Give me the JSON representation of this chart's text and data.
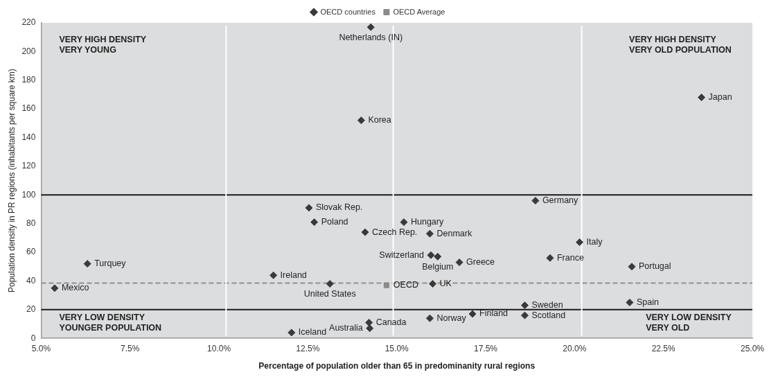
{
  "chart_data": {
    "type": "scatter",
    "xlabel": "Percentage of population older than 65 in predominanity rural regions",
    "ylabel": "Population density in PR regions (inhabitants per square km)",
    "legend": "top",
    "grid": false,
    "xlim": [
      5,
      25
    ],
    "xticks": [
      {
        "value": 5,
        "label": "5.0%"
      },
      {
        "value": 7.5,
        "label": "7.5%"
      },
      {
        "value": 10,
        "label": "10.0%"
      },
      {
        "value": 12.5,
        "label": "12.5%"
      },
      {
        "value": 15,
        "label": "15.0%"
      },
      {
        "value": 17.5,
        "label": "17.5%"
      },
      {
        "value": 20,
        "label": "20.0%"
      },
      {
        "value": 22.5,
        "label": "22.5%"
      },
      {
        "value": 25,
        "label": "25.0%"
      }
    ],
    "ylim": [
      0,
      220
    ],
    "yticks": [
      0,
      20,
      40,
      60,
      80,
      100,
      120,
      140,
      160,
      180,
      200,
      220
    ],
    "series": [
      {
        "name": "OECD countries",
        "color": "#3a3a3a",
        "marker": "diamond",
        "x": [
          14.27,
          14.0,
          23.57,
          12.53,
          12.68,
          14.11,
          6.3,
          5.38,
          11.53,
          13.12,
          12.04,
          14.22,
          14.24,
          15.2,
          15.93,
          15.96,
          16.15,
          16.76,
          16.01,
          18.9,
          20.14,
          19.31,
          21.61,
          18.6,
          21.55,
          17.13,
          18.6,
          15.93
        ],
        "values": [
          217,
          152,
          168,
          91,
          81,
          74,
          52,
          35,
          44,
          38,
          4,
          11,
          7,
          81,
          73,
          58,
          57,
          53,
          38,
          96,
          67,
          56,
          50,
          23,
          25,
          17,
          16,
          14
        ]
      },
      {
        "name": "OECD Average",
        "color": "#8a8a8a",
        "marker": "square",
        "x": [
          14.71
        ],
        "values": [
          37
        ]
      }
    ],
    "ref_lines": [
      {
        "axis": "y",
        "value": 100,
        "color": "#1a1a1a",
        "line_style": "solid"
      },
      {
        "axis": "y",
        "value": 20,
        "color": "#1a1a1a",
        "line_style": "solid"
      },
      {
        "axis": "y",
        "value": 38.5,
        "color": "#8f8f8f",
        "line_style": "dashed"
      },
      {
        "axis": "x",
        "value": 10.2,
        "color": "#ffffff",
        "line_style": "solid"
      },
      {
        "axis": "x",
        "value": 14.9,
        "color": "#ffffff",
        "line_style": "solid"
      },
      {
        "axis": "x",
        "value": 20.2,
        "color": "#ffffff",
        "line_style": "solid"
      }
    ],
    "annotations": [
      "VERY HIGH DENSITY\nVERY YOUNG",
      "VERY HIGH DENSITY\nVERY OLD POPULATION",
      "VERY LOW DENSITY\nYOUNGER POPULATION",
      "VERY LOW DENSITY\nVERY OLD",
      {
        "text": "Netherlands (IN)",
        "x": 14.27,
        "y": 217
      },
      {
        "text": "Korea",
        "x": 14.0,
        "y": 152
      },
      {
        "text": "Japan",
        "x": 23.57,
        "y": 168
      },
      {
        "text": "Slovak Rep.",
        "x": 12.53,
        "y": 91
      },
      {
        "text": "Poland",
        "x": 12.68,
        "y": 81
      },
      {
        "text": "Czech Rep.",
        "x": 14.11,
        "y": 74
      },
      {
        "text": "Turquey",
        "x": 6.3,
        "y": 52
      },
      {
        "text": "Mexico",
        "x": 5.38,
        "y": 35
      },
      {
        "text": "Ireland",
        "x": 11.53,
        "y": 44
      },
      {
        "text": "United States",
        "x": 13.12,
        "y": 38
      },
      {
        "text": "Iceland",
        "x": 12.04,
        "y": 4
      },
      {
        "text": "Canada",
        "x": 14.22,
        "y": 11
      },
      {
        "text": "Australia",
        "x": 14.24,
        "y": 7
      },
      {
        "text": "Hungary",
        "x": 15.2,
        "y": 81
      },
      {
        "text": "Denmark",
        "x": 15.93,
        "y": 73
      },
      {
        "text": "Switzerland",
        "x": 15.96,
        "y": 58
      },
      {
        "text": "Belgium",
        "x": 16.15,
        "y": 57
      },
      {
        "text": "Greece",
        "x": 16.76,
        "y": 53
      },
      {
        "text": "OECD",
        "x": 14.71,
        "y": 37
      },
      {
        "text": "UK",
        "x": 16.01,
        "y": 38
      },
      {
        "text": "Germany",
        "x": 18.9,
        "y": 96
      },
      {
        "text": "Italy",
        "x": 20.14,
        "y": 67
      },
      {
        "text": "France",
        "x": 19.31,
        "y": 56
      },
      {
        "text": "Portugal",
        "x": 21.61,
        "y": 50
      },
      {
        "text": "Sweden",
        "x": 18.6,
        "y": 23
      },
      {
        "text": "Spain",
        "x": 21.55,
        "y": 25
      },
      {
        "text": "Finland",
        "x": 17.13,
        "y": 17
      },
      {
        "text": "Scotland",
        "x": 18.6,
        "y": 16
      },
      {
        "text": "Norway",
        "x": 15.93,
        "y": 14
      }
    ]
  }
}
